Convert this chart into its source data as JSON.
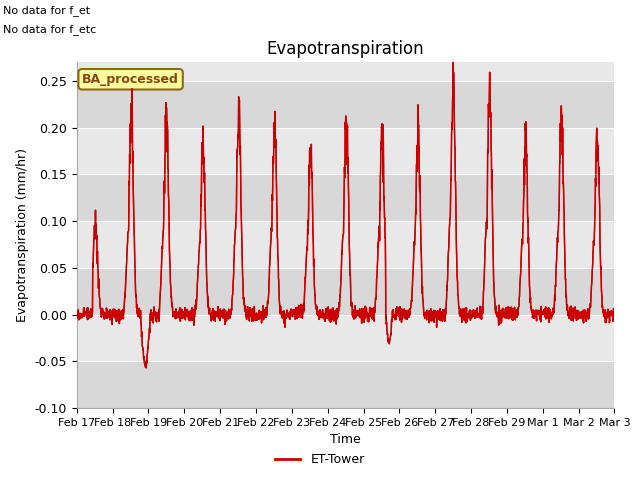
{
  "title": "Evapotranspiration",
  "ylabel": "Evapotranspiration (mm/hr)",
  "xlabel": "Time",
  "ylim": [
    -0.1,
    0.27
  ],
  "yticks": [
    -0.1,
    -0.05,
    0.0,
    0.05,
    0.1,
    0.15,
    0.2,
    0.25
  ],
  "line_color": "#cc0000",
  "line_width": 1.0,
  "bg_color": "#ffffff",
  "plot_bg_color": "#e8e8e8",
  "legend_label": "ET-Tower",
  "legend_box_label": "BA_processed",
  "top_left_text_line1": "No data for f_et",
  "top_left_text_line2": "No data for f_etc",
  "x_tick_labels": [
    "Feb 17",
    "Feb 18",
    "Feb 19",
    "Feb 20",
    "Feb 21",
    "Feb 22",
    "Feb 23",
    "Feb 24",
    "Feb 25",
    "Feb 26",
    "Feb 27",
    "Feb 28",
    "Feb 29",
    "Mar 1",
    "Mar 2",
    "Mar 3"
  ],
  "n_days": 15
}
